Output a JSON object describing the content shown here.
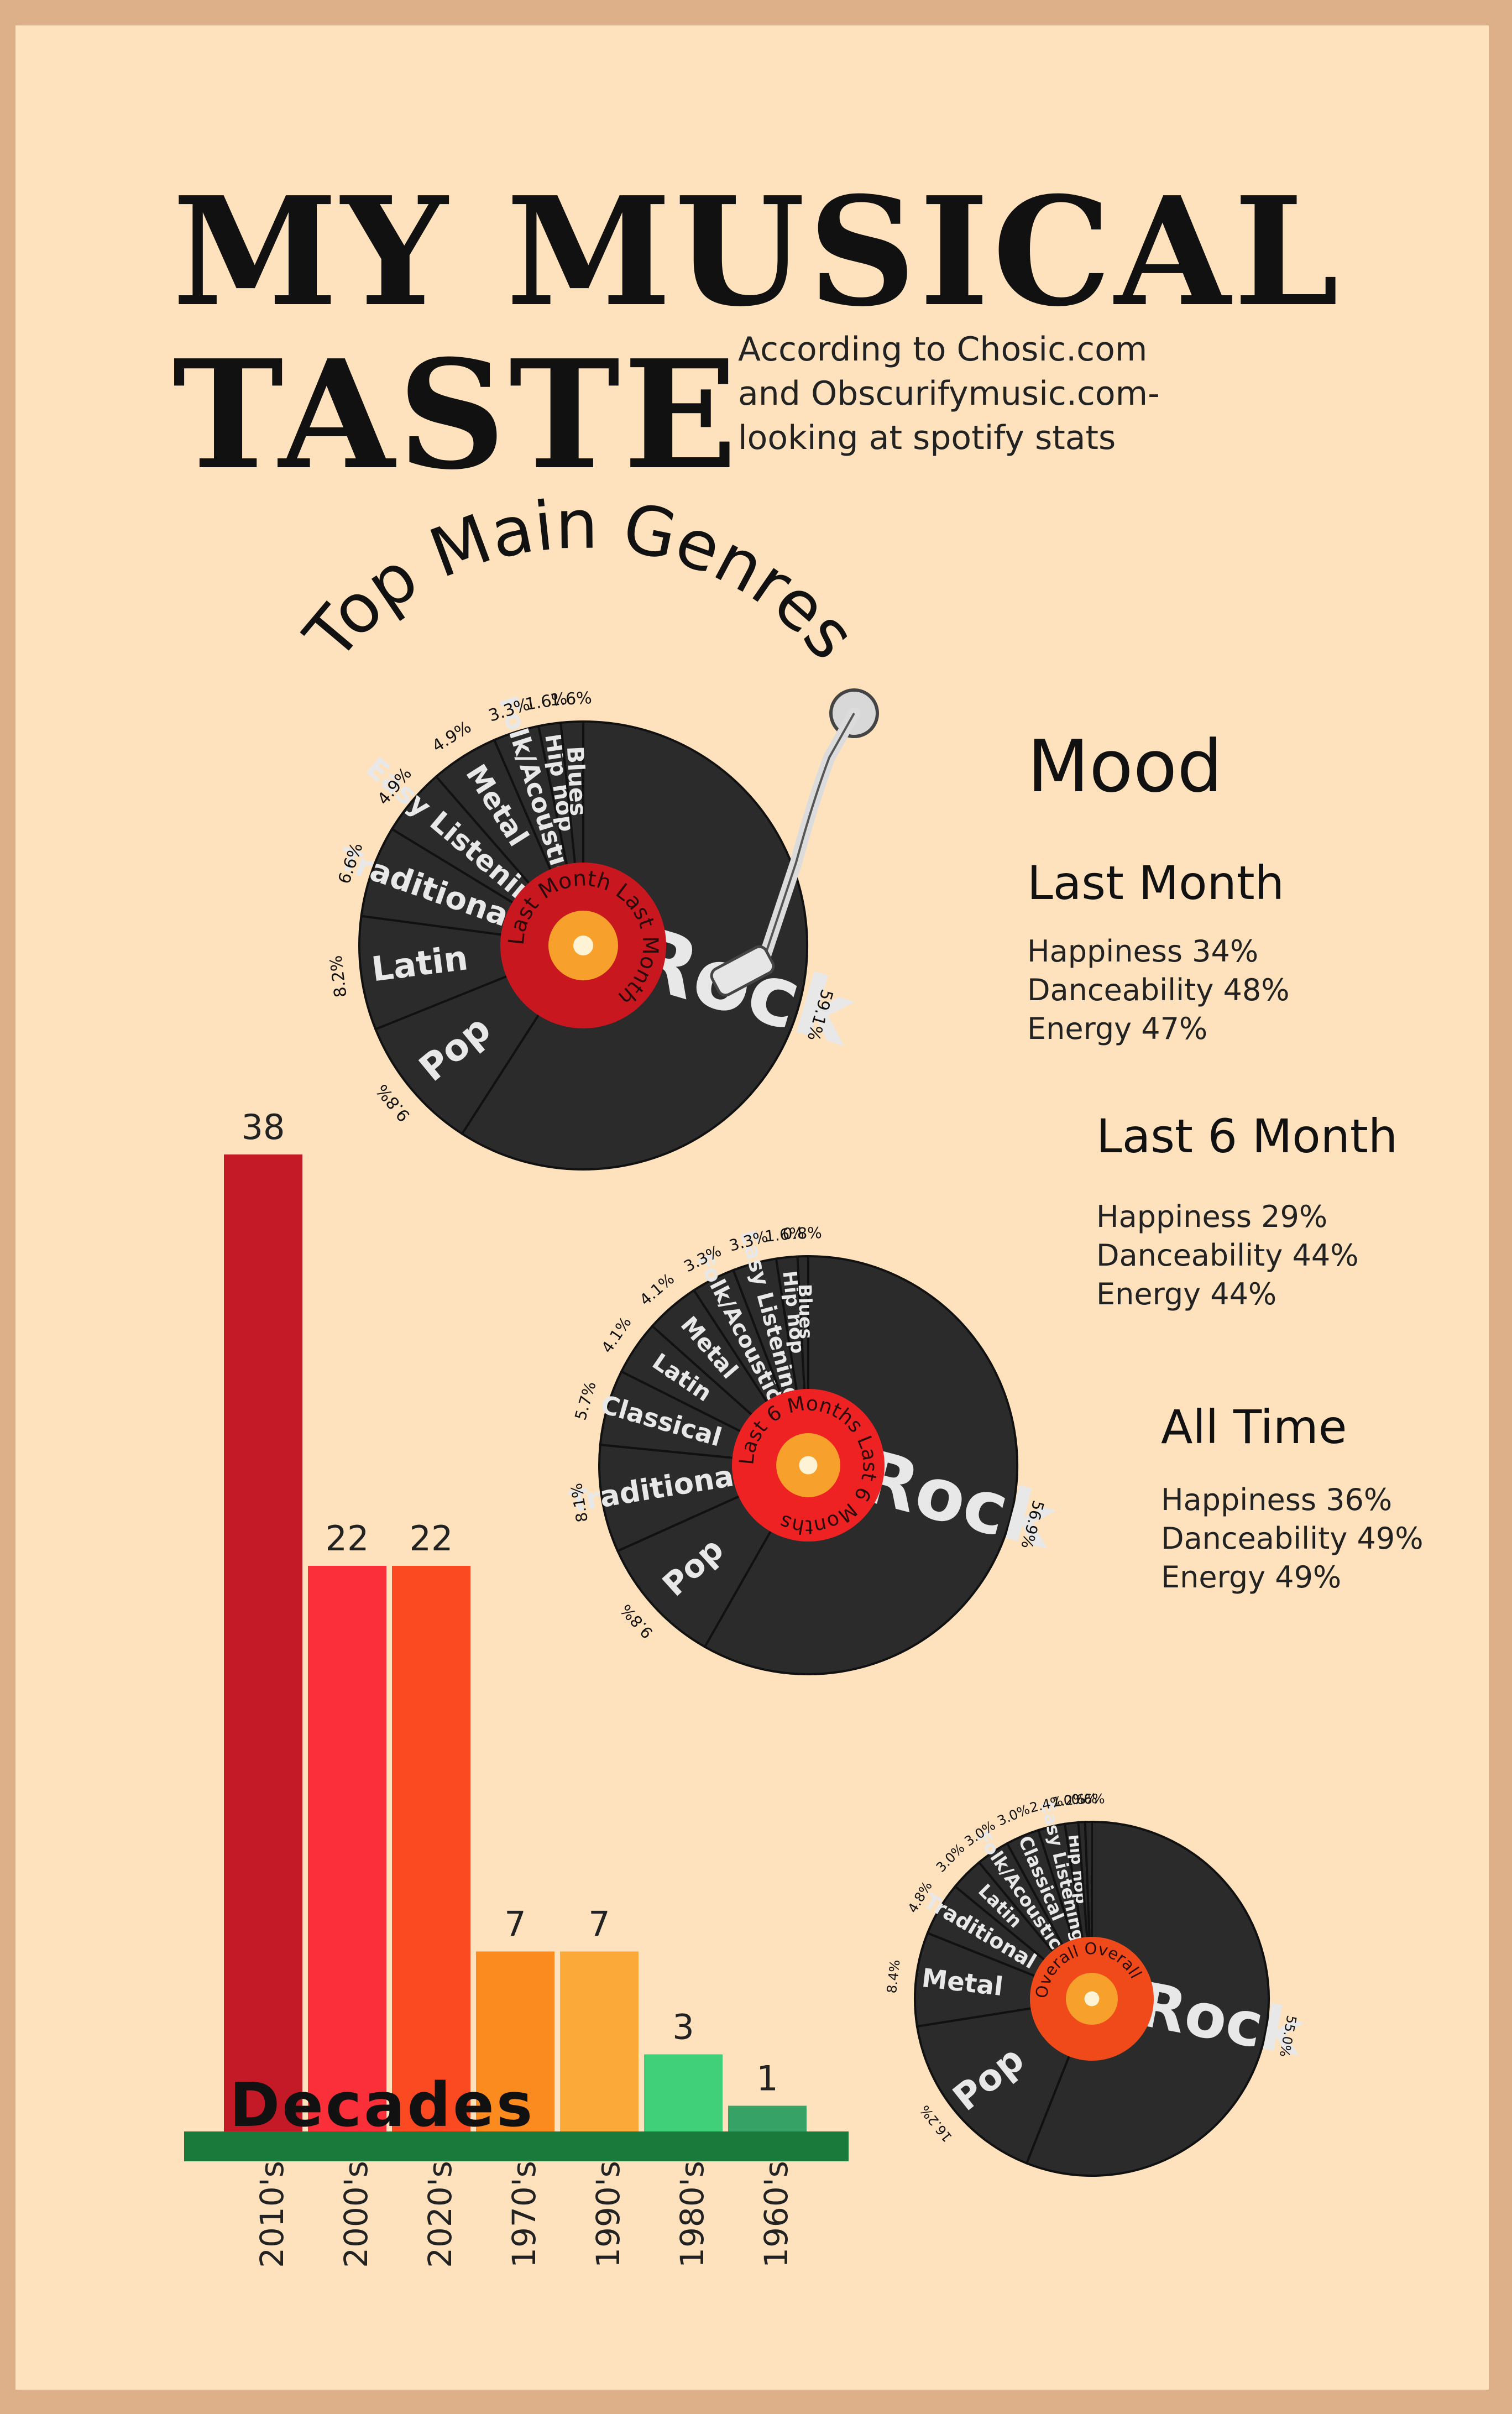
{
  "title_line1": "MY MUSICAL",
  "title_line2": "TASTE",
  "subtitle": [
    "According to Chosic.com",
    "and Obscurifymusic.com-",
    "looking at spotify stats"
  ],
  "genres_title": "Top Main Genres",
  "mood": {
    "heading": "Mood",
    "sections": [
      {
        "label": "Last Month",
        "lines": [
          "Happiness 34%",
          "Danceability 48%",
          "Energy 47%"
        ]
      },
      {
        "label": "Last 6 Month",
        "lines": [
          "Happiness 29%",
          "Danceability 44%",
          "Energy 44%"
        ]
      },
      {
        "label": "All Time",
        "lines": [
          "Happiness 36%",
          "Danceability 49%",
          "Energy 49%"
        ]
      }
    ]
  },
  "colors": {
    "background": "#fde2bd",
    "frame": "#ddb08a",
    "vinyl": "#2b2b2b",
    "vinyl_text": "#e8e8e8",
    "label_last_month": "#c8171e",
    "label_last_6_months": "#ee2222",
    "label_overall": "#f04a1a",
    "ground": "#1a7a3c"
  },
  "chart_data": [
    {
      "type": "pie",
      "label": "Last Month",
      "title": "Top Main Genres",
      "slices": [
        {
          "name": "Rock",
          "value": 59.1
        },
        {
          "name": "Pop",
          "value": 9.8
        },
        {
          "name": "Latin",
          "value": 8.2
        },
        {
          "name": "Traditional",
          "value": 6.6
        },
        {
          "name": "Easy Listening",
          "value": 4.9
        },
        {
          "name": "Metal",
          "value": 4.9
        },
        {
          "name": "Folk/Acoustic",
          "value": 3.3
        },
        {
          "name": "Hip hop",
          "value": 1.6
        },
        {
          "name": "Blues",
          "value": 1.6
        }
      ]
    },
    {
      "type": "pie",
      "label": "Last 6 Months",
      "slices": [
        {
          "name": "Rock",
          "value": 56.9
        },
        {
          "name": "Pop",
          "value": 9.8
        },
        {
          "name": "Traditional",
          "value": 8.1
        },
        {
          "name": "Classical",
          "value": 5.7
        },
        {
          "name": "Latin",
          "value": 4.1
        },
        {
          "name": "Metal",
          "value": 4.1
        },
        {
          "name": "Folk/Acoustic",
          "value": 3.3
        },
        {
          "name": "Easy Listening",
          "value": 3.3
        },
        {
          "name": "Hip hop",
          "value": 1.6
        },
        {
          "name": "Blues",
          "value": 0.8
        }
      ]
    },
    {
      "type": "pie",
      "label": "Overall",
      "slices": [
        {
          "name": "Rock",
          "value": 55.0
        },
        {
          "name": "Pop",
          "value": 16.2
        },
        {
          "name": "Metal",
          "value": 8.4
        },
        {
          "name": "Traditional",
          "value": 4.8
        },
        {
          "name": "Latin",
          "value": 3.0
        },
        {
          "name": "Folk/Acoustic",
          "value": 3.0
        },
        {
          "name": "Classical",
          "value": 3.0
        },
        {
          "name": "Easy Listening",
          "value": 2.4
        },
        {
          "name": "Hip hop",
          "value": 1.2
        },
        {
          "name": "",
          "value": 0.6
        },
        {
          "name": "",
          "value": 0.6
        }
      ]
    },
    {
      "type": "bar",
      "title": "Decades",
      "categories": [
        "2010's",
        "2000's",
        "2020's",
        "1970's",
        "1990's",
        "1980's",
        "1960's"
      ],
      "values": [
        38,
        22,
        22,
        7,
        7,
        3,
        1
      ],
      "colors": [
        "#c41927",
        "#fb2f3a",
        "#fb4a21",
        "#fb8a1f",
        "#fbaa3a",
        "#40d07a",
        "#37a265"
      ],
      "ylim": [
        0,
        38
      ]
    }
  ]
}
